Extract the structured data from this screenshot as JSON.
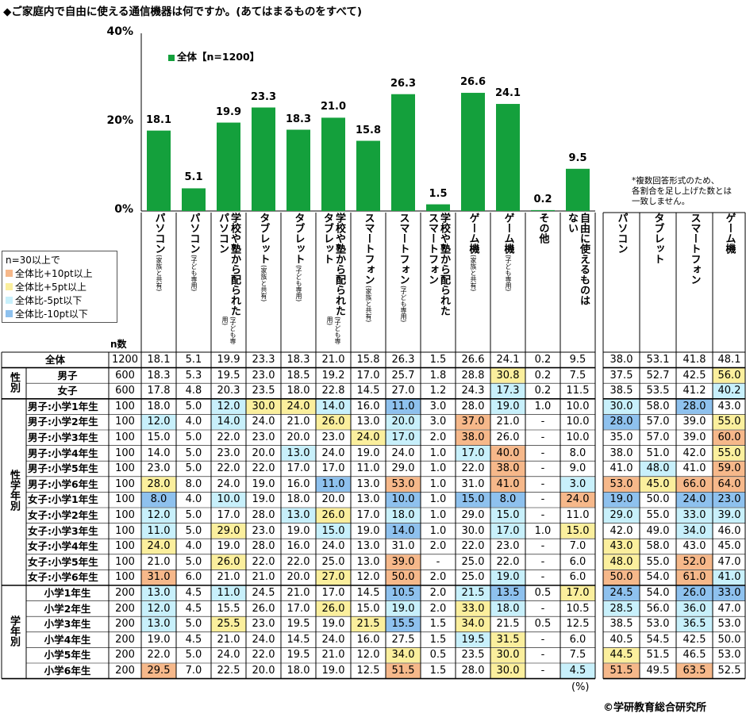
{
  "title": "◆ご家庭内で自由に使える通信機器は何ですか。(あてはまるものをすべて)",
  "legend_chart_label": "全体【n=1200】",
  "note": [
    "*複数回答形式のため、",
    "各割合を足し上げた数とは",
    "一致しません。"
  ],
  "legend": {
    "title": "n=30以上で",
    "items": [
      {
        "label": "全体比+10pt以上",
        "color": "#f6b88a"
      },
      {
        "label": "全体比+5pt以上",
        "color": "#fbef9d"
      },
      {
        "label": "全体比-5pt以下",
        "color": "#c8f0fb"
      },
      {
        "label": "全体比-10pt以下",
        "color": "#8ec1ee"
      }
    ]
  },
  "chart_data": {
    "type": "bar",
    "categories": [
      "パソコン(家族と共有)",
      "パソコン(子ども専用)",
      "学校や塾から配られたパソコン(子ども専用)",
      "タブレット(家族と共有)",
      "タブレット(子ども専用)",
      "学校や塾から配られたタブレット(子ども専用)",
      "スマートフォン(家族と共有)",
      "スマートフォン(子ども専用)",
      "学校や塾から配られたスマートフォン",
      "ゲーム機(家族と共有)",
      "ゲーム機(子ども専用)",
      "その他",
      "自由に使えるものはない"
    ],
    "values": [
      18.1,
      5.1,
      19.9,
      23.3,
      18.3,
      21.0,
      15.8,
      26.3,
      1.5,
      26.6,
      24.1,
      0.2,
      9.5
    ],
    "series": [
      {
        "name": "全体【n=1200】",
        "values": [
          18.1,
          5.1,
          19.9,
          23.3,
          18.3,
          21.0,
          15.8,
          26.3,
          1.5,
          26.6,
          24.1,
          0.2,
          9.5
        ]
      }
    ],
    "ylim": [
      0,
      40
    ],
    "yticks": [
      "0%",
      "20%",
      "40%"
    ],
    "bar_color": "#14a03c"
  },
  "columns": [
    {
      "main": [
        "パソコン"
      ],
      "sub": "(家族と共有)"
    },
    {
      "main": [
        "パソコン"
      ],
      "sub": "(子ども専用)"
    },
    {
      "main": [
        "学校や塾から配られた",
        "パソコン"
      ],
      "sub": "(子ども専用)"
    },
    {
      "main": [
        "タブレット"
      ],
      "sub": "(家族と共有)"
    },
    {
      "main": [
        "タブレット"
      ],
      "sub": "(子ども専用)"
    },
    {
      "main": [
        "学校や塾から配られた",
        "タブレット"
      ],
      "sub": "(子ども専用)"
    },
    {
      "main": [
        "スマートフォン"
      ],
      "sub": "(家族と共有)"
    },
    {
      "main": [
        "スマートフォン"
      ],
      "sub": "(子ども専用)"
    },
    {
      "main": [
        "学校や塾から配られた",
        "スマートフォン"
      ],
      "sub": ""
    },
    {
      "main": [
        "ゲーム機"
      ],
      "sub": "(家族と共有)"
    },
    {
      "main": [
        "ゲーム機"
      ],
      "sub": "(子ども専用)"
    },
    {
      "main": [
        "その他"
      ],
      "sub": ""
    },
    {
      "main": [
        "自由に使えるものは",
        "ない"
      ],
      "sub": ""
    }
  ],
  "summary_columns": [
    "パソコン",
    "タブレット",
    "スマートフォン",
    "ゲーム機"
  ],
  "n_header": "n数",
  "groups": [
    {
      "label": "性別",
      "first": 1,
      "last": 2
    },
    {
      "label": "性学年別",
      "first": 3,
      "last": 14
    },
    {
      "label": "学年別",
      "first": 15,
      "last": 20
    }
  ],
  "colors": {
    "p10": "#f6b88a",
    "p5": "#fbef9d",
    "m5": "#c8f0fb",
    "m10": "#8ec1ee"
  },
  "rows": [
    {
      "label": "全体",
      "n": "1200",
      "values": [
        "18.1",
        "5.1",
        "19.9",
        "23.3",
        "18.3",
        "21.0",
        "15.8",
        "26.3",
        "1.5",
        "26.6",
        "24.1",
        "0.2",
        "9.5"
      ],
      "summary": [
        "38.0",
        "53.1",
        "41.8",
        "48.1"
      ]
    },
    {
      "label": "男子",
      "n": "600",
      "values": [
        "18.3",
        "5.3",
        "19.5",
        "23.0",
        "18.5",
        "19.2",
        "17.0",
        "25.7",
        "1.8",
        "28.8",
        "30.8",
        "0.2",
        "7.5"
      ],
      "summary": [
        "37.5",
        "52.7",
        "42.5",
        "56.0"
      ],
      "hl": {
        "10": "p5"
      },
      "shl": {
        "3": "p5"
      }
    },
    {
      "label": "女子",
      "n": "600",
      "values": [
        "17.8",
        "4.8",
        "20.3",
        "23.5",
        "18.0",
        "22.8",
        "14.5",
        "27.0",
        "1.2",
        "24.3",
        "17.3",
        "0.2",
        "11.5"
      ],
      "summary": [
        "38.5",
        "53.5",
        "41.2",
        "40.2"
      ],
      "hl": {
        "10": "m5"
      },
      "shl": {
        "3": "m5"
      }
    },
    {
      "label": "男子:小学1年生",
      "n": "100",
      "values": [
        "18.0",
        "5.0",
        "12.0",
        "30.0",
        "24.0",
        "14.0",
        "16.0",
        "11.0",
        "3.0",
        "28.0",
        "19.0",
        "1.0",
        "10.0"
      ],
      "summary": [
        "30.0",
        "58.0",
        "28.0",
        "43.0"
      ],
      "hl": {
        "2": "m5",
        "3": "p5",
        "4": "p5",
        "5": "m5",
        "7": "m10",
        "10": "m5"
      },
      "shl": {
        "0": "m5",
        "2": "m10"
      }
    },
    {
      "label": "男子:小学2年生",
      "n": "100",
      "values": [
        "12.0",
        "4.0",
        "14.0",
        "24.0",
        "21.0",
        "26.0",
        "13.0",
        "20.0",
        "3.0",
        "37.0",
        "21.0",
        "-",
        "10.0"
      ],
      "summary": [
        "28.0",
        "57.0",
        "39.0",
        "55.0"
      ],
      "hl": {
        "0": "m5",
        "2": "m5",
        "5": "p5",
        "7": "m5",
        "9": "p10"
      },
      "shl": {
        "0": "m10",
        "3": "p5"
      }
    },
    {
      "label": "男子:小学3年生",
      "n": "100",
      "values": [
        "15.0",
        "5.0",
        "22.0",
        "23.0",
        "20.0",
        "23.0",
        "24.0",
        "17.0",
        "2.0",
        "38.0",
        "26.0",
        "-",
        "10.0"
      ],
      "summary": [
        "35.0",
        "57.0",
        "39.0",
        "60.0"
      ],
      "hl": {
        "6": "p5",
        "7": "m5",
        "9": "p10"
      },
      "shl": {
        "3": "p10"
      }
    },
    {
      "label": "男子:小学4年生",
      "n": "100",
      "values": [
        "14.0",
        "5.0",
        "23.0",
        "20.0",
        "13.0",
        "24.0",
        "19.0",
        "24.0",
        "1.0",
        "17.0",
        "40.0",
        "-",
        "8.0"
      ],
      "summary": [
        "38.0",
        "51.0",
        "42.0",
        "55.0"
      ],
      "hl": {
        "4": "m5",
        "9": "m5",
        "10": "p10"
      },
      "shl": {
        "3": "p5"
      }
    },
    {
      "label": "男子:小学5年生",
      "n": "100",
      "values": [
        "23.0",
        "5.0",
        "22.0",
        "22.0",
        "17.0",
        "17.0",
        "11.0",
        "29.0",
        "1.0",
        "22.0",
        "38.0",
        "-",
        "9.0"
      ],
      "summary": [
        "41.0",
        "48.0",
        "41.0",
        "59.0"
      ],
      "hl": {
        "10": "p10"
      },
      "shl": {
        "1": "m5",
        "3": "p10"
      }
    },
    {
      "label": "男子:小学6年生",
      "n": "100",
      "values": [
        "28.0",
        "8.0",
        "24.0",
        "19.0",
        "16.0",
        "11.0",
        "13.0",
        "53.0",
        "1.0",
        "31.0",
        "41.0",
        "-",
        "3.0"
      ],
      "summary": [
        "53.0",
        "45.0",
        "66.0",
        "64.0"
      ],
      "hl": {
        "0": "p5",
        "5": "m10",
        "7": "p10",
        "10": "p10",
        "12": "m5"
      },
      "shl": {
        "0": "p10",
        "1": "p5",
        "2": "p10",
        "3": "p10"
      }
    },
    {
      "label": "女子:小学1年生",
      "n": "100",
      "values": [
        "8.0",
        "4.0",
        "10.0",
        "19.0",
        "18.0",
        "20.0",
        "13.0",
        "10.0",
        "1.0",
        "15.0",
        "8.0",
        "-",
        "24.0"
      ],
      "summary": [
        "19.0",
        "50.0",
        "24.0",
        "23.0"
      ],
      "hl": {
        "0": "m10",
        "2": "m5",
        "7": "m10",
        "9": "m10",
        "10": "m10",
        "12": "p10"
      },
      "shl": {
        "0": "m10",
        "2": "m10",
        "3": "m10"
      }
    },
    {
      "label": "女子:小学2年生",
      "n": "100",
      "values": [
        "12.0",
        "5.0",
        "17.0",
        "28.0",
        "13.0",
        "26.0",
        "17.0",
        "18.0",
        "1.0",
        "29.0",
        "15.0",
        "-",
        "11.0"
      ],
      "summary": [
        "29.0",
        "55.0",
        "33.0",
        "39.0"
      ],
      "hl": {
        "0": "m5",
        "4": "m5",
        "5": "p5",
        "7": "m5",
        "10": "m5"
      },
      "shl": {
        "0": "m5",
        "2": "m5",
        "3": "m5"
      }
    },
    {
      "label": "女子:小学3年生",
      "n": "100",
      "values": [
        "11.0",
        "5.0",
        "29.0",
        "23.0",
        "19.0",
        "15.0",
        "19.0",
        "14.0",
        "1.0",
        "30.0",
        "17.0",
        "1.0",
        "15.0"
      ],
      "summary": [
        "42.0",
        "49.0",
        "34.0",
        "46.0"
      ],
      "hl": {
        "0": "m5",
        "2": "p5",
        "5": "m5",
        "7": "m10",
        "10": "m5",
        "12": "p5"
      },
      "shl": {
        "2": "m5"
      }
    },
    {
      "label": "女子:小学4年生",
      "n": "100",
      "values": [
        "24.0",
        "4.0",
        "19.0",
        "28.0",
        "16.0",
        "24.0",
        "13.0",
        "31.0",
        "2.0",
        "22.0",
        "23.0",
        "-",
        "7.0"
      ],
      "summary": [
        "43.0",
        "58.0",
        "43.0",
        "45.0"
      ],
      "hl": {
        "0": "p5"
      },
      "shl": {
        "0": "p5"
      }
    },
    {
      "label": "女子:小学5年生",
      "n": "100",
      "values": [
        "21.0",
        "5.0",
        "26.0",
        "22.0",
        "22.0",
        "25.0",
        "13.0",
        "39.0",
        "-",
        "25.0",
        "22.0",
        "-",
        "6.0"
      ],
      "summary": [
        "48.0",
        "55.0",
        "52.0",
        "47.0"
      ],
      "hl": {
        "2": "p5",
        "7": "p10"
      },
      "shl": {
        "0": "p5",
        "2": "p10"
      }
    },
    {
      "label": "女子:小学6年生",
      "n": "100",
      "values": [
        "31.0",
        "6.0",
        "21.0",
        "21.0",
        "20.0",
        "27.0",
        "12.0",
        "50.0",
        "2.0",
        "25.0",
        "19.0",
        "-",
        "6.0"
      ],
      "summary": [
        "50.0",
        "54.0",
        "61.0",
        "41.0"
      ],
      "hl": {
        "0": "p10",
        "5": "p5",
        "7": "p10",
        "10": "m5"
      },
      "shl": {
        "0": "p10",
        "2": "p10",
        "3": "m5"
      }
    },
    {
      "label": "小学1年生",
      "n": "200",
      "values": [
        "13.0",
        "4.5",
        "11.0",
        "24.5",
        "21.0",
        "17.0",
        "14.5",
        "10.5",
        "2.0",
        "21.5",
        "13.5",
        "0.5",
        "17.0"
      ],
      "summary": [
        "24.5",
        "54.0",
        "26.0",
        "33.0"
      ],
      "hl": {
        "0": "m5",
        "2": "m5",
        "7": "m10",
        "9": "m5",
        "10": "m10",
        "12": "p5"
      },
      "shl": {
        "0": "m10",
        "2": "m10",
        "3": "m10"
      }
    },
    {
      "label": "小学2年生",
      "n": "200",
      "values": [
        "12.0",
        "4.5",
        "15.5",
        "26.0",
        "17.0",
        "26.0",
        "15.0",
        "19.0",
        "2.0",
        "33.0",
        "18.0",
        "-",
        "10.5"
      ],
      "summary": [
        "28.5",
        "56.0",
        "36.0",
        "47.0"
      ],
      "hl": {
        "0": "m5",
        "5": "p5",
        "7": "m5",
        "9": "p5",
        "10": "m5"
      },
      "shl": {
        "0": "m5",
        "2": "m5"
      }
    },
    {
      "label": "小学3年生",
      "n": "200",
      "values": [
        "13.0",
        "5.0",
        "25.5",
        "23.0",
        "19.5",
        "19.0",
        "21.5",
        "15.5",
        "1.5",
        "34.0",
        "21.5",
        "0.5",
        "12.5"
      ],
      "summary": [
        "38.5",
        "53.0",
        "36.5",
        "53.0"
      ],
      "hl": {
        "0": "m5",
        "2": "p5",
        "6": "p5",
        "7": "m10",
        "9": "p5"
      },
      "shl": {
        "2": "m5"
      }
    },
    {
      "label": "小学4年生",
      "n": "200",
      "values": [
        "19.0",
        "4.5",
        "21.0",
        "24.0",
        "14.5",
        "24.0",
        "16.0",
        "27.5",
        "1.5",
        "19.5",
        "31.5",
        "-",
        "6.0"
      ],
      "summary": [
        "40.5",
        "54.5",
        "42.5",
        "50.0"
      ],
      "hl": {
        "9": "m5",
        "10": "p5"
      }
    },
    {
      "label": "小学5年生",
      "n": "200",
      "values": [
        "22.0",
        "5.0",
        "24.0",
        "22.0",
        "19.5",
        "21.0",
        "12.0",
        "34.0",
        "0.5",
        "23.5",
        "30.0",
        "-",
        "7.5"
      ],
      "summary": [
        "44.5",
        "51.5",
        "46.5",
        "53.0"
      ],
      "hl": {
        "7": "p5",
        "10": "p5"
      },
      "shl": {
        "0": "p5"
      }
    },
    {
      "label": "小学6年生",
      "n": "200",
      "values": [
        "29.5",
        "7.0",
        "22.5",
        "20.0",
        "18.0",
        "19.0",
        "12.5",
        "51.5",
        "1.5",
        "28.0",
        "30.0",
        "-",
        "4.5"
      ],
      "summary": [
        "51.5",
        "49.5",
        "63.5",
        "52.5"
      ],
      "hl": {
        "0": "p10",
        "7": "p10",
        "10": "p5",
        "12": "m5"
      },
      "shl": {
        "0": "p10",
        "2": "p10"
      }
    }
  ],
  "pct_unit": "(%)",
  "copyright": "©学研教育総合研究所"
}
